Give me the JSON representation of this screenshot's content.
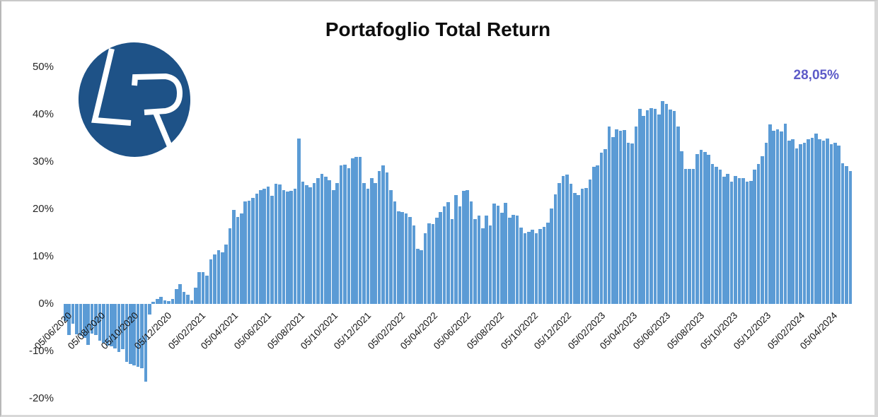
{
  "title": "Portafoglio Total Return",
  "last_value_label": "28,05%",
  "logo": {
    "text": "LR"
  },
  "colors": {
    "bar": "#5B9BD5",
    "last_value_text": "#5D5BC8",
    "logo_background": "#1E5287",
    "logo_letters": "#FFFFFF",
    "title_text": "#0D0D0D"
  },
  "chart_data": {
    "type": "bar",
    "title": "Portafoglio Total Return",
    "unit": "percent",
    "frequency": "weekly",
    "start_date": "05/06/2020",
    "end_date": "10/05/2024",
    "ylim": [
      -20,
      50
    ],
    "grid": false,
    "legend": false,
    "final_value": 28.05,
    "y_ticks": [
      {
        "label": "50%",
        "value": 50
      },
      {
        "label": "40%",
        "value": 40
      },
      {
        "label": "30%",
        "value": 30
      },
      {
        "label": "20%",
        "value": 20
      },
      {
        "label": "10%",
        "value": 10
      },
      {
        "label": "0%",
        "value": 0
      },
      {
        "label": "-10%",
        "value": -10
      },
      {
        "label": "-20%",
        "value": -20
      }
    ],
    "x_ticks": [
      {
        "label": "05/06/2020",
        "week": 0
      },
      {
        "label": "05/08/2020",
        "week": 8.71
      },
      {
        "label": "05/10/2020",
        "week": 17.43
      },
      {
        "label": "05/12/2020",
        "week": 26.14
      },
      {
        "label": "05/02/2021",
        "week": 35.0
      },
      {
        "label": "05/04/2021",
        "week": 43.43
      },
      {
        "label": "05/06/2021",
        "week": 52.14
      },
      {
        "label": "05/08/2021",
        "week": 60.86
      },
      {
        "label": "05/10/2021",
        "week": 69.57
      },
      {
        "label": "05/12/2021",
        "week": 78.29
      },
      {
        "label": "05/02/2022",
        "week": 87.14
      },
      {
        "label": "05/04/2022",
        "week": 95.57
      },
      {
        "label": "05/06/2022",
        "week": 104.29
      },
      {
        "label": "05/08/2022",
        "week": 113.0
      },
      {
        "label": "05/10/2022",
        "week": 121.71
      },
      {
        "label": "05/12/2022",
        "week": 130.43
      },
      {
        "label": "05/02/2023",
        "week": 139.29
      },
      {
        "label": "05/04/2023",
        "week": 147.71
      },
      {
        "label": "05/06/2023",
        "week": 156.43
      },
      {
        "label": "05/08/2023",
        "week": 165.14
      },
      {
        "label": "05/10/2023",
        "week": 173.86
      },
      {
        "label": "05/12/2023",
        "week": 182.57
      },
      {
        "label": "05/02/2024",
        "week": 191.43
      },
      {
        "label": "05/04/2024",
        "week": 200.0
      }
    ],
    "values": [
      -3.6,
      -6.6,
      -4.2,
      -6.4,
      -6.7,
      -7.2,
      -8.6,
      -6.2,
      -6.6,
      -7.8,
      -8.2,
      -8.8,
      -8.9,
      -9.4,
      -10.2,
      -9.6,
      -12.2,
      -12.7,
      -13.0,
      -13.3,
      -13.6,
      -16.4,
      -2.3,
      0.4,
      1.1,
      1.5,
      0.7,
      0.6,
      1.0,
      3.2,
      4.2,
      2.5,
      2.0,
      0.8,
      3.4,
      6.7,
      6.7,
      5.9,
      9.4,
      10.4,
      11.4,
      10.9,
      12.6,
      15.9,
      19.8,
      18.3,
      19.1,
      21.6,
      21.8,
      22.4,
      23.3,
      24.0,
      24.4,
      24.8,
      22.9,
      25.3,
      25.2,
      24.1,
      23.8,
      23.9,
      24.3,
      35.0,
      25.8,
      25.1,
      24.7,
      25.5,
      26.5,
      27.4,
      26.8,
      26.1,
      24.1,
      25.5,
      29.3,
      29.4,
      28.6,
      30.8,
      31.0,
      31.1,
      25.5,
      24.3,
      26.5,
      25.5,
      28.0,
      29.3,
      27.8,
      24.0,
      21.6,
      19.6,
      19.4,
      19.1,
      18.3,
      16.6,
      11.6,
      11.4,
      14.9,
      17.0,
      16.9,
      18.2,
      19.4,
      20.6,
      21.5,
      17.9,
      23.0,
      20.6,
      23.9,
      24.0,
      21.6,
      17.9,
      18.7,
      15.9,
      18.6,
      16.5,
      21.2,
      20.7,
      19.2,
      21.4,
      18.2,
      18.8,
      18.6,
      16.1,
      14.9,
      15.2,
      15.6,
      15.0,
      15.8,
      16.3,
      17.2,
      20.1,
      23.1,
      25.5,
      27.0,
      27.3,
      25.3,
      23.5,
      23.0,
      24.3,
      24.5,
      26.3,
      29.0,
      29.3,
      32.0,
      32.7,
      37.4,
      35.2,
      36.9,
      36.5,
      36.7,
      34.0,
      33.9,
      37.4,
      41.2,
      39.7,
      40.9,
      41.4,
      41.2,
      40.0,
      42.8,
      42.3,
      41.0,
      40.7,
      37.4,
      32.2,
      28.5,
      28.5,
      28.5,
      31.6,
      32.5,
      32.1,
      31.5,
      29.6,
      29.0,
      28.3,
      26.8,
      27.5,
      25.8,
      27.0,
      26.5,
      26.5,
      25.8,
      26.0,
      28.3,
      29.6,
      31.2,
      34.0,
      37.9,
      36.5,
      36.8,
      36.4,
      38.0,
      34.5,
      34.8,
      32.8,
      33.8,
      34.0,
      34.8,
      35.1,
      36.0,
      34.8,
      34.5,
      35.0,
      33.8,
      34.1,
      33.5,
      29.7,
      29.1,
      28.05
    ]
  }
}
